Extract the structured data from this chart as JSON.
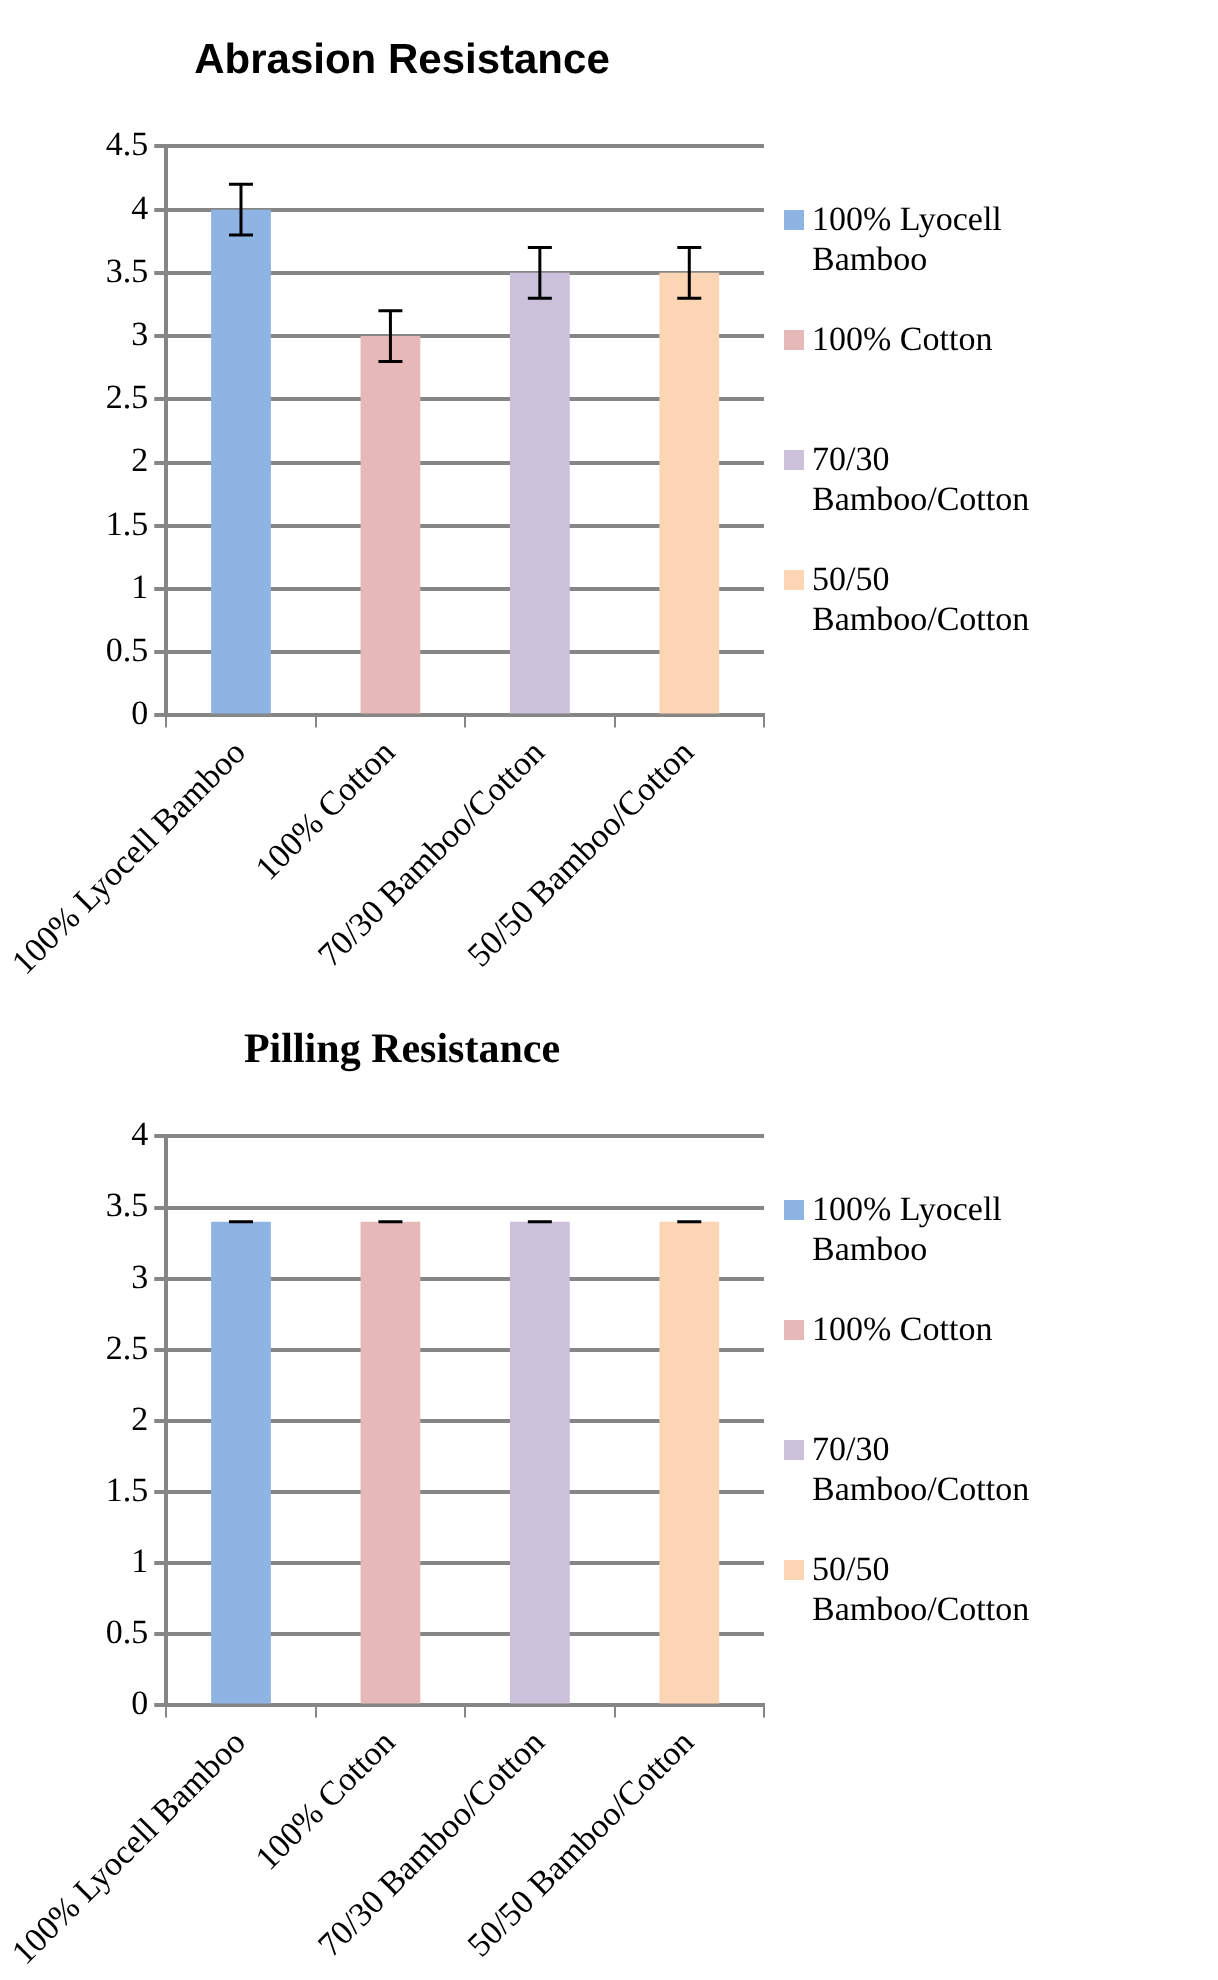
{
  "chart_data": [
    {
      "type": "bar",
      "title": "Abrasion Resistance",
      "categories": [
        "100% Lyocell Bamboo",
        "100% Cotton",
        "70/30 Bamboo/Cotton",
        "50/50 Bamboo/Cotton"
      ],
      "series": [
        {
          "name": "100% Lyocell Bamboo",
          "color": "#8eb4e3",
          "values": [
            4,
            null,
            null,
            null
          ],
          "errors": [
            0.2,
            null,
            null,
            null
          ]
        },
        {
          "name": "100% Cotton",
          "color": "#e6b9b8",
          "values": [
            null,
            3,
            null,
            null
          ],
          "errors": [
            null,
            0.2,
            null,
            null
          ]
        },
        {
          "name": "70/30 Bamboo/Cotton",
          "color": "#ccc1da",
          "values": [
            null,
            null,
            3.5,
            null
          ],
          "errors": [
            null,
            null,
            0.2,
            null
          ]
        },
        {
          "name": "50/50 Bamboo/Cotton",
          "color": "#fcd5b5",
          "values": [
            null,
            null,
            null,
            3.5
          ],
          "errors": [
            null,
            null,
            null,
            0.2
          ]
        }
      ],
      "ylim": [
        0,
        4.5
      ],
      "yticks": [
        0,
        0.5,
        1,
        1.5,
        2,
        2.5,
        3,
        3.5,
        4,
        4.5
      ],
      "grid": "y",
      "legend": "right"
    },
    {
      "type": "bar",
      "title": "Pilling Resistance",
      "categories": [
        "100% Lyocell Bamboo",
        "100% Cotton",
        "70/30 Bamboo/Cotton",
        "50/50 Bamboo/Cotton"
      ],
      "series": [
        {
          "name": "100% Lyocell Bamboo",
          "color": "#8eb4e3",
          "values": [
            3.4,
            null,
            null,
            null
          ],
          "errors": [
            0,
            null,
            null,
            null
          ]
        },
        {
          "name": "100% Cotton",
          "color": "#e6b9b8",
          "values": [
            null,
            3.4,
            null,
            null
          ],
          "errors": [
            null,
            0,
            null,
            null
          ]
        },
        {
          "name": "70/30 Bamboo/Cotton",
          "color": "#ccc1da",
          "values": [
            null,
            null,
            3.4,
            null
          ],
          "errors": [
            null,
            null,
            0,
            null
          ]
        },
        {
          "name": "50/50 Bamboo/Cotton",
          "color": "#fcd5b5",
          "values": [
            null,
            null,
            null,
            3.4
          ],
          "errors": [
            null,
            null,
            null,
            0
          ]
        }
      ],
      "ylim": [
        0,
        4
      ],
      "yticks": [
        0,
        0.5,
        1,
        1.5,
        2,
        2.5,
        3,
        3.5,
        4
      ],
      "grid": "y",
      "legend": "right"
    }
  ]
}
